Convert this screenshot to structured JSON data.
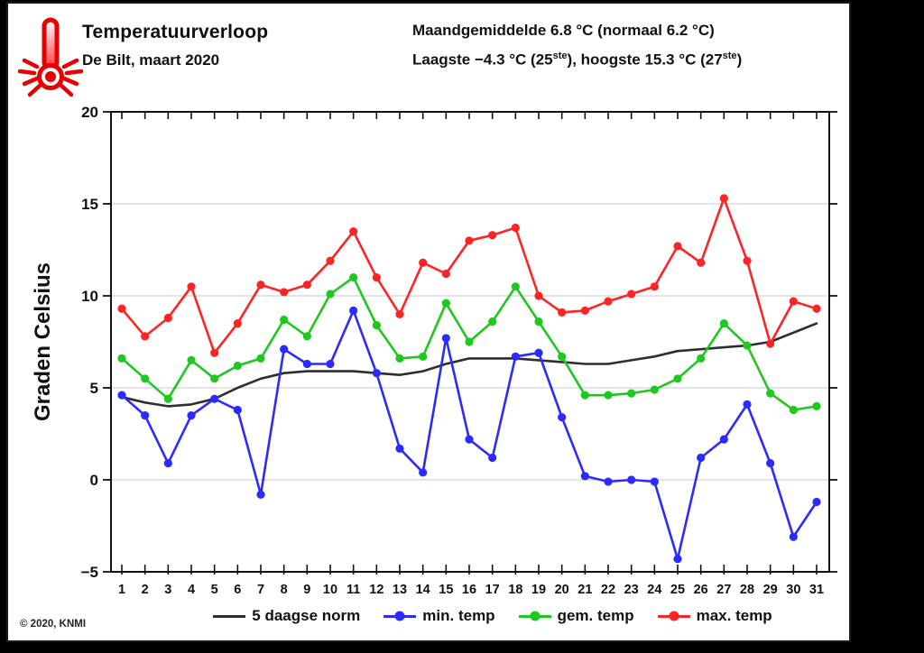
{
  "header": {
    "title": "Temperatuurverloop",
    "subtitle": "De Bilt, maart 2020",
    "stats_line1": "Maandgemiddelde 6.8 °C (normaal 6.2 °C)",
    "stats_line2_parts": {
      "p0": "Laagste −4.3 °C (25",
      "p1": "ste",
      "p2": "), hoogste 15.3 °C (27",
      "p3": "ste",
      "p4": ")"
    },
    "icon": "thermometer-alert-icon"
  },
  "footer": {
    "copyright": "© 2020, KNMI"
  },
  "colors": {
    "norm": "#2e2e2e",
    "min": "#2b2bff",
    "gem": "#1ec81e",
    "max": "#ff2424",
    "grid": "#c9c9c9",
    "frame": "#111111",
    "accent_red": "#e60000"
  },
  "chart_data": {
    "type": "line",
    "title": "Temperatuurverloop De Bilt, maart 2020",
    "ylabel": "Graden Celsius",
    "xlabel": "",
    "ylim": [
      -5,
      20
    ],
    "yticks": [
      20,
      15,
      10,
      5,
      0,
      -5
    ],
    "gridlines": [
      15,
      10,
      5,
      0
    ],
    "grid": true,
    "legend_position": "bottom",
    "x": [
      1,
      2,
      3,
      4,
      5,
      6,
      7,
      8,
      9,
      10,
      11,
      12,
      13,
      14,
      15,
      16,
      17,
      18,
      19,
      20,
      21,
      22,
      23,
      24,
      25,
      26,
      27,
      28,
      29,
      30,
      31
    ],
    "series": [
      {
        "name": "5 daagse norm",
        "color": "#2e2e2e",
        "marker": false,
        "values": [
          4.5,
          4.2,
          4.0,
          4.1,
          4.4,
          5.0,
          5.5,
          5.8,
          5.9,
          5.9,
          5.9,
          5.8,
          5.7,
          5.9,
          6.3,
          6.6,
          6.6,
          6.6,
          6.5,
          6.4,
          6.3,
          6.3,
          6.5,
          6.7,
          7.0,
          7.1,
          7.2,
          7.3,
          7.5,
          8.0,
          8.5
        ]
      },
      {
        "name": "min. temp",
        "color": "#2b2bff",
        "marker": true,
        "values": [
          4.6,
          3.5,
          0.9,
          3.5,
          4.4,
          3.8,
          -0.8,
          7.1,
          6.3,
          6.3,
          9.2,
          5.8,
          1.7,
          0.4,
          7.7,
          2.2,
          1.2,
          6.7,
          6.9,
          3.4,
          0.2,
          -0.1,
          0.0,
          -0.1,
          -4.3,
          1.2,
          2.2,
          4.1,
          0.9,
          -3.1,
          -1.2
        ]
      },
      {
        "name": "gem. temp",
        "color": "#1ec81e",
        "marker": true,
        "values": [
          6.6,
          5.5,
          4.4,
          6.5,
          5.5,
          6.2,
          6.6,
          8.7,
          7.8,
          10.1,
          11.0,
          8.4,
          6.6,
          6.7,
          9.6,
          7.5,
          8.6,
          10.5,
          8.6,
          6.7,
          4.6,
          4.6,
          4.7,
          4.9,
          5.5,
          6.6,
          8.5,
          7.3,
          4.7,
          3.8,
          4.0
        ]
      },
      {
        "name": "max. temp",
        "color": "#ff2424",
        "marker": true,
        "values": [
          9.3,
          7.8,
          8.8,
          10.5,
          6.9,
          8.5,
          10.6,
          10.2,
          10.6,
          11.9,
          13.5,
          11.0,
          9.0,
          11.8,
          11.2,
          13.0,
          13.3,
          13.7,
          10.0,
          9.1,
          9.2,
          9.7,
          10.1,
          10.5,
          12.7,
          11.8,
          15.3,
          11.9,
          7.4,
          9.7,
          9.3
        ]
      }
    ]
  }
}
